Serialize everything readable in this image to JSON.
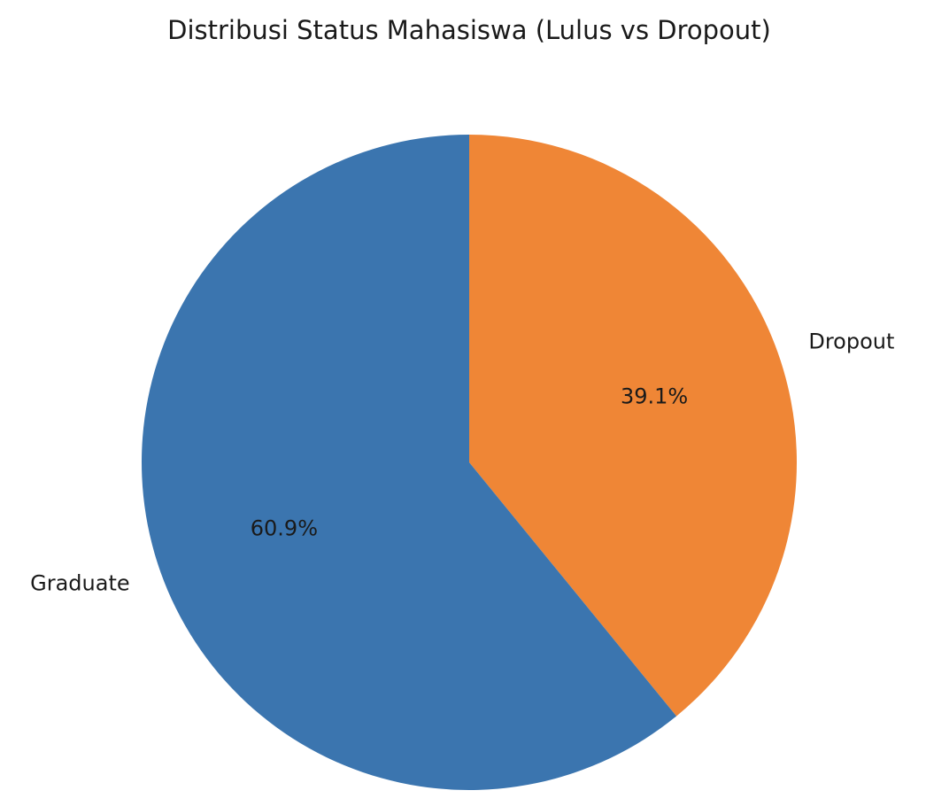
{
  "chart_data": {
    "type": "pie",
    "title": "Distribusi Status Mahasiswa (Lulus vs Dropout)",
    "start_angle_deg": 90,
    "direction": "clockwise",
    "slices": [
      {
        "label": "Dropout",
        "value": 39.1,
        "pct_label": "39.1%",
        "color": "#ef8636"
      },
      {
        "label": "Graduate",
        "value": 60.9,
        "pct_label": "60.9%",
        "color": "#3b75af"
      }
    ]
  }
}
